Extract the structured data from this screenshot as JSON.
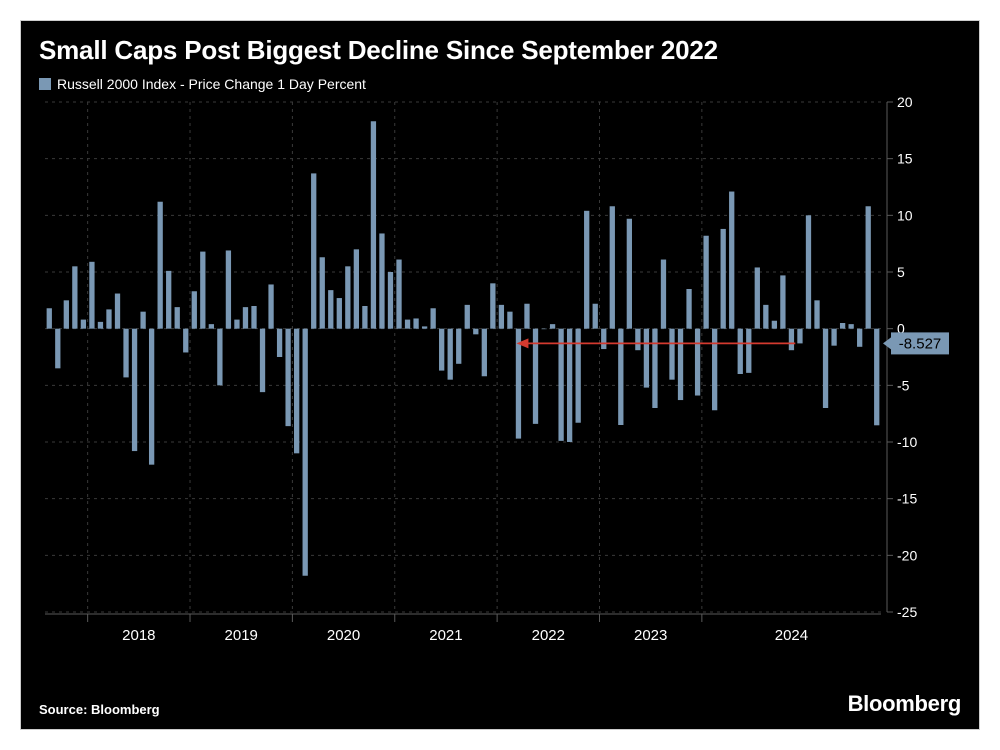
{
  "title": "Small Caps Post Biggest Decline Since September 2022",
  "legend_label": "Russell 2000 Index - Price Change 1 Day Percent",
  "source": "Source: Bloomberg",
  "brand": "Bloomberg",
  "chart": {
    "type": "bar",
    "background_color": "#000000",
    "bar_color": "#7a98b4",
    "grid_color": "#3a3a3a",
    "text_color": "#ffffff",
    "arrow_color": "#d43a2f",
    "ylim": [
      -25,
      20
    ],
    "yticks": [
      20,
      15,
      10,
      5,
      0,
      -5,
      -10,
      -15,
      -20,
      -25
    ],
    "x_year_labels": [
      2018,
      2019,
      2020,
      2021,
      2022,
      2023,
      2024
    ],
    "x_separator_indices": [
      5,
      17,
      29,
      41,
      53,
      65,
      77
    ],
    "bar_gap_ratio": 0.38,
    "callout": {
      "value_text": "-8.527",
      "bar_index": 88,
      "arrow_to_index": 55
    },
    "values": [
      1.8,
      -3.5,
      2.5,
      5.5,
      0.8,
      5.9,
      0.6,
      1.7,
      3.1,
      -4.3,
      -10.8,
      1.5,
      -12.0,
      11.2,
      5.1,
      1.9,
      -2.1,
      3.3,
      6.8,
      0.4,
      -5.0,
      6.9,
      0.8,
      1.9,
      2.0,
      -5.6,
      3.9,
      -2.5,
      -8.6,
      -11.0,
      -21.8,
      13.7,
      6.3,
      3.4,
      2.7,
      5.5,
      7.0,
      2.0,
      18.3,
      8.4,
      5.0,
      6.1,
      0.8,
      0.9,
      0.2,
      1.8,
      -3.7,
      -4.5,
      -3.1,
      2.1,
      -0.5,
      -4.2,
      4.0,
      2.1,
      1.5,
      -9.7,
      2.2,
      -8.4,
      0.0,
      0.4,
      -9.9,
      -10.0,
      -8.3,
      10.4,
      2.2,
      -1.8,
      10.8,
      -8.5,
      9.7,
      -1.9,
      -5.2,
      -7.0,
      6.1,
      -4.5,
      -6.3,
      3.5,
      -5.9,
      8.2,
      -7.2,
      8.8,
      12.1,
      -4.0,
      -3.9,
      5.4,
      2.1,
      0.7,
      4.7,
      -1.9,
      -1.3,
      10.0,
      2.5,
      -7.0,
      -1.5,
      0.5,
      0.4,
      -1.6,
      10.8,
      -8.527
    ]
  }
}
